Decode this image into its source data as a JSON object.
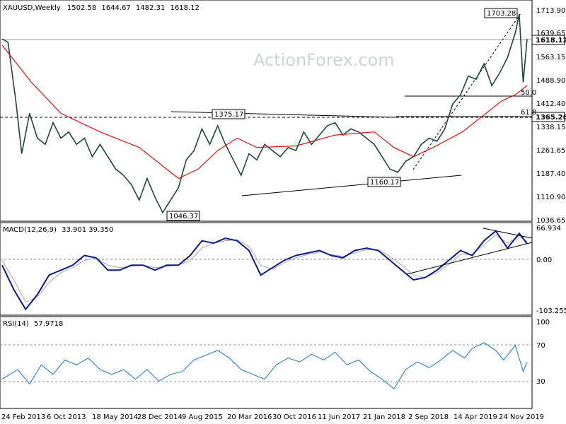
{
  "chart_data": [
    {
      "type": "candlestick",
      "symbol": "XAUUSD",
      "timeframe": "Weekly",
      "ohlc": {
        "open": "1502.58",
        "high": "1644.67",
        "low": "1482.31",
        "close": "1618.12"
      },
      "watermark": "ActionForex.com",
      "ylim": [
        1036.65,
        1713.9
      ],
      "y_ticks": [
        "1713.90",
        "1639.65",
        "1563.15",
        "1488.90",
        "1412.40",
        "1338.15",
        "1261.65",
        "1187.40",
        "1110.90",
        "1036.65"
      ],
      "x_ticks": [
        "24 Feb 2013",
        "6 Oct 2013",
        "18 May 2014",
        "28 Dec 2014",
        "9 Aug 2015",
        "20 Mar 2016",
        "30 Oct 2016",
        "11 Jun 2017",
        "21 Jan 2018",
        "2 Sep 2018",
        "14 Apr 2019",
        "24 Nov 2019"
      ],
      "current_price": "1618.12",
      "hline_label": "1365.26",
      "annotations": [
        "1703.28",
        "1375.17",
        "1160.17",
        "1046.37",
        "50.0",
        "61.8"
      ],
      "price_path": [
        [
          0,
          1620
        ],
        [
          3,
          1610
        ],
        [
          7,
          1420
        ],
        [
          10,
          1250
        ],
        [
          14,
          1380
        ],
        [
          18,
          1300
        ],
        [
          22,
          1280
        ],
        [
          26,
          1350
        ],
        [
          30,
          1300
        ],
        [
          34,
          1320
        ],
        [
          38,
          1280
        ],
        [
          42,
          1300
        ],
        [
          46,
          1240
        ],
        [
          50,
          1280
        ],
        [
          54,
          1240
        ],
        [
          58,
          1200
        ],
        [
          62,
          1180
        ],
        [
          66,
          1150
        ],
        [
          70,
          1100
        ],
        [
          74,
          1170
        ],
        [
          78,
          1110
        ],
        [
          82,
          1060
        ],
        [
          86,
          1100
        ],
        [
          90,
          1140
        ],
        [
          94,
          1230
        ],
        [
          98,
          1260
        ],
        [
          102,
          1330
        ],
        [
          106,
          1280
        ],
        [
          110,
          1340
        ],
        [
          114,
          1280
        ],
        [
          118,
          1230
        ],
        [
          122,
          1180
        ],
        [
          126,
          1250
        ],
        [
          130,
          1230
        ],
        [
          134,
          1280
        ],
        [
          138,
          1260
        ],
        [
          142,
          1240
        ],
        [
          146,
          1270
        ],
        [
          150,
          1260
        ],
        [
          154,
          1320
        ],
        [
          158,
          1280
        ],
        [
          162,
          1310
        ],
        [
          166,
          1340
        ],
        [
          170,
          1350
        ],
        [
          174,
          1310
        ],
        [
          178,
          1330
        ],
        [
          182,
          1320
        ],
        [
          186,
          1300
        ],
        [
          190,
          1280
        ],
        [
          194,
          1240
        ],
        [
          198,
          1200
        ],
        [
          202,
          1190
        ],
        [
          206,
          1225
        ],
        [
          210,
          1240
        ],
        [
          214,
          1280
        ],
        [
          218,
          1300
        ],
        [
          222,
          1290
        ],
        [
          226,
          1330
        ],
        [
          230,
          1410
        ],
        [
          234,
          1440
        ],
        [
          238,
          1500
        ],
        [
          242,
          1490
        ],
        [
          246,
          1540
        ],
        [
          250,
          1470
        ],
        [
          254,
          1510
        ],
        [
          258,
          1560
        ],
        [
          262,
          1640
        ],
        [
          264,
          1700
        ],
        [
          266,
          1480
        ],
        [
          268,
          1620
        ]
      ],
      "ma_path": [
        [
          0,
          1600
        ],
        [
          15,
          1480
        ],
        [
          30,
          1380
        ],
        [
          50,
          1320
        ],
        [
          70,
          1270
        ],
        [
          80,
          1220
        ],
        [
          90,
          1170
        ],
        [
          100,
          1200
        ],
        [
          110,
          1260
        ],
        [
          120,
          1300
        ],
        [
          130,
          1270
        ],
        [
          150,
          1275
        ],
        [
          170,
          1310
        ],
        [
          190,
          1320
        ],
        [
          200,
          1270
        ],
        [
          210,
          1240
        ],
        [
          220,
          1270
        ],
        [
          235,
          1320
        ],
        [
          245,
          1370
        ],
        [
          255,
          1420
        ],
        [
          262,
          1440
        ],
        [
          268,
          1470
        ]
      ]
    },
    {
      "type": "line",
      "indicator": "MACD(12,26,9)",
      "values_label": "33.901 39.350",
      "ylim": [
        -103.255,
        66.934
      ],
      "y_ticks": [
        "66.934",
        "0.00",
        "-103.255"
      ],
      "macd_path": [
        [
          0,
          -10
        ],
        [
          6,
          -60
        ],
        [
          12,
          -100
        ],
        [
          18,
          -70
        ],
        [
          24,
          -30
        ],
        [
          30,
          -20
        ],
        [
          36,
          -10
        ],
        [
          42,
          10
        ],
        [
          48,
          5
        ],
        [
          54,
          -20
        ],
        [
          60,
          -20
        ],
        [
          66,
          -10
        ],
        [
          72,
          -10
        ],
        [
          78,
          -20
        ],
        [
          84,
          -10
        ],
        [
          90,
          -10
        ],
        [
          96,
          10
        ],
        [
          102,
          40
        ],
        [
          108,
          35
        ],
        [
          114,
          45
        ],
        [
          120,
          40
        ],
        [
          126,
          20
        ],
        [
          132,
          -30
        ],
        [
          138,
          -15
        ],
        [
          144,
          0
        ],
        [
          150,
          10
        ],
        [
          156,
          15
        ],
        [
          162,
          20
        ],
        [
          168,
          10
        ],
        [
          174,
          5
        ],
        [
          180,
          20
        ],
        [
          186,
          25
        ],
        [
          192,
          20
        ],
        [
          198,
          0
        ],
        [
          204,
          -20
        ],
        [
          210,
          -40
        ],
        [
          216,
          -35
        ],
        [
          222,
          -20
        ],
        [
          228,
          0
        ],
        [
          234,
          20
        ],
        [
          240,
          10
        ],
        [
          246,
          40
        ],
        [
          252,
          60
        ],
        [
          258,
          25
        ],
        [
          264,
          55
        ],
        [
          268,
          33.9
        ]
      ],
      "signal_path": [
        [
          0,
          0
        ],
        [
          6,
          -40
        ],
        [
          12,
          -85
        ],
        [
          18,
          -75
        ],
        [
          24,
          -45
        ],
        [
          30,
          -25
        ],
        [
          36,
          -15
        ],
        [
          42,
          0
        ],
        [
          48,
          5
        ],
        [
          54,
          -10
        ],
        [
          60,
          -15
        ],
        [
          66,
          -12
        ],
        [
          72,
          -10
        ],
        [
          78,
          -15
        ],
        [
          84,
          -12
        ],
        [
          90,
          -10
        ],
        [
          96,
          0
        ],
        [
          102,
          25
        ],
        [
          108,
          35
        ],
        [
          114,
          40
        ],
        [
          120,
          42
        ],
        [
          126,
          28
        ],
        [
          132,
          -10
        ],
        [
          138,
          -18
        ],
        [
          144,
          -5
        ],
        [
          150,
          5
        ],
        [
          156,
          12
        ],
        [
          162,
          17
        ],
        [
          168,
          12
        ],
        [
          174,
          8
        ],
        [
          180,
          15
        ],
        [
          186,
          22
        ],
        [
          192,
          22
        ],
        [
          198,
          8
        ],
        [
          204,
          -10
        ],
        [
          210,
          -30
        ],
        [
          216,
          -35
        ],
        [
          222,
          -25
        ],
        [
          228,
          -8
        ],
        [
          234,
          12
        ],
        [
          240,
          12
        ],
        [
          246,
          32
        ],
        [
          252,
          52
        ],
        [
          258,
          35
        ],
        [
          264,
          48
        ],
        [
          268,
          39.35
        ]
      ]
    },
    {
      "type": "line",
      "indicator": "RSI(14)",
      "value_label": "57.9718",
      "ylim": [
        0,
        100
      ],
      "y_ticks": [
        "100",
        "70",
        "30"
      ],
      "rsi_path": [
        [
          0,
          40
        ],
        [
          8,
          50
        ],
        [
          14,
          35
        ],
        [
          20,
          55
        ],
        [
          26,
          45
        ],
        [
          32,
          60
        ],
        [
          38,
          55
        ],
        [
          44,
          62
        ],
        [
          50,
          50
        ],
        [
          56,
          45
        ],
        [
          62,
          50
        ],
        [
          68,
          40
        ],
        [
          74,
          50
        ],
        [
          80,
          38
        ],
        [
          86,
          45
        ],
        [
          92,
          48
        ],
        [
          98,
          60
        ],
        [
          104,
          65
        ],
        [
          110,
          70
        ],
        [
          116,
          62
        ],
        [
          122,
          50
        ],
        [
          128,
          45
        ],
        [
          134,
          40
        ],
        [
          140,
          55
        ],
        [
          146,
          62
        ],
        [
          152,
          58
        ],
        [
          158,
          66
        ],
        [
          164,
          60
        ],
        [
          170,
          68
        ],
        [
          176,
          55
        ],
        [
          182,
          60
        ],
        [
          188,
          48
        ],
        [
          194,
          40
        ],
        [
          200,
          30
        ],
        [
          206,
          50
        ],
        [
          212,
          58
        ],
        [
          218,
          52
        ],
        [
          224,
          60
        ],
        [
          230,
          70
        ],
        [
          236,
          62
        ],
        [
          240,
          72
        ],
        [
          246,
          78
        ],
        [
          252,
          70
        ],
        [
          256,
          60
        ],
        [
          262,
          75
        ],
        [
          266,
          48
        ],
        [
          268,
          58
        ]
      ]
    }
  ]
}
